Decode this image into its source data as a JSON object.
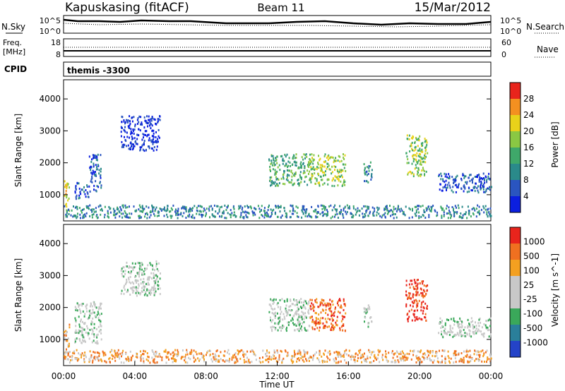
{
  "header": {
    "station": "Kapuskasing (fitACF)",
    "beam": "Beam 11",
    "date": "15/Mar/2012"
  },
  "sky_panel": {
    "left_label": "N.Sky",
    "left_ticks": [
      "10^5",
      "10^0"
    ],
    "right_ticks": [
      "10^5",
      "10^0"
    ],
    "right_label": "N.Search"
  },
  "freq_panel": {
    "left_label_line1": "Freq.",
    "left_label_line2": "[MHz]",
    "left_ticks": [
      "18",
      "8"
    ],
    "right_ticks": [
      "60",
      "0"
    ],
    "right_label": "Nave"
  },
  "cpid": {
    "label": "CPID",
    "value": "themis -3300"
  },
  "chart_data": [
    {
      "type": "heatmap",
      "name": "power",
      "ylabel": "Slant Range [km]",
      "y_ticks": [
        "4000",
        "3000",
        "2000",
        "1000"
      ],
      "y_tick_values": [
        4000,
        3000,
        2000,
        1000
      ],
      "ylim": [
        180,
        4600
      ],
      "colorbar_label": "Power [dB]",
      "colorbar_ticks": [
        "28",
        "24",
        "20",
        "16",
        "12",
        "8",
        "4"
      ],
      "colorbar_tick_values": [
        28,
        24,
        20,
        16,
        12,
        8,
        4
      ],
      "colorbar_range": [
        0,
        32
      ],
      "colors": [
        "#0b1fe0",
        "#2a55c0",
        "#2a8a8a",
        "#3fa86a",
        "#8ac843",
        "#e8d21a",
        "#f39020",
        "#e8241c"
      ],
      "regions": [
        {
          "t": [
            0.0,
            0.3
          ],
          "r": [
            500,
            1500
          ],
          "level": 5
        },
        {
          "t": [
            0.6,
            1.4
          ],
          "r": [
            900,
            1400
          ],
          "level": 1
        },
        {
          "t": [
            1.4,
            2.1
          ],
          "r": [
            1100,
            2300
          ],
          "level": 1
        },
        {
          "t": [
            3.2,
            5.4
          ],
          "r": [
            2400,
            3500
          ],
          "level": 0
        },
        {
          "t": [
            11.5,
            13.8
          ],
          "r": [
            1300,
            2300
          ],
          "level": 3
        },
        {
          "t": [
            13.8,
            15.8
          ],
          "r": [
            1300,
            2300
          ],
          "level": 4
        },
        {
          "t": [
            16.8,
            17.3
          ],
          "r": [
            1400,
            2100
          ],
          "level": 2
        },
        {
          "t": [
            19.2,
            20.4
          ],
          "r": [
            1600,
            2900
          ],
          "level": 4
        },
        {
          "t": [
            21.0,
            24.0
          ],
          "r": [
            1100,
            1700
          ],
          "level": 1
        },
        {
          "t": [
            0.0,
            24.0
          ],
          "r": [
            300,
            700
          ],
          "level": 2
        }
      ]
    },
    {
      "type": "heatmap",
      "name": "velocity",
      "xlabel": "Time UT",
      "ylabel": "Slant Range [km]",
      "x_ticks": [
        "00:00",
        "04:00",
        "08:00",
        "12:00",
        "16:00",
        "20:00",
        "00:00"
      ],
      "x_tick_values": [
        0,
        4,
        8,
        12,
        16,
        20,
        24
      ],
      "xlim": [
        0,
        24
      ],
      "y_ticks": [
        "4000",
        "3000",
        "2000",
        "1000"
      ],
      "y_tick_values": [
        4000,
        3000,
        2000,
        1000
      ],
      "ylim": [
        180,
        4600
      ],
      "colorbar_label": "Velocity [m s^-1]",
      "colorbar_ticks": [
        "1000",
        "500",
        "100",
        "25",
        "-25",
        "-100",
        "-500",
        "-1000"
      ],
      "colors": [
        "#2443c8",
        "#2a7f9a",
        "#3aa85a",
        "#c8c8c8",
        "#c8c8c8",
        "#f3a020",
        "#f07020",
        "#e8241c"
      ],
      "regions": [
        {
          "t": [
            0.0,
            0.3
          ],
          "r": [
            500,
            1500
          ],
          "level": 5
        },
        {
          "t": [
            0.6,
            2.1
          ],
          "r": [
            900,
            2200
          ],
          "level": 3
        },
        {
          "t": [
            3.2,
            5.4
          ],
          "r": [
            2400,
            3500
          ],
          "level": 3
        },
        {
          "t": [
            11.5,
            13.8
          ],
          "r": [
            1300,
            2300
          ],
          "level": 3
        },
        {
          "t": [
            13.8,
            15.8
          ],
          "r": [
            1300,
            2300
          ],
          "level": 6
        },
        {
          "t": [
            16.8,
            17.3
          ],
          "r": [
            1400,
            2100
          ],
          "level": 3
        },
        {
          "t": [
            19.2,
            20.4
          ],
          "r": [
            1600,
            2900
          ],
          "level": 7
        },
        {
          "t": [
            21.0,
            24.0
          ],
          "r": [
            1100,
            1700
          ],
          "level": 3
        },
        {
          "t": [
            0.0,
            24.0
          ],
          "r": [
            300,
            700
          ],
          "level": 5
        }
      ]
    }
  ]
}
